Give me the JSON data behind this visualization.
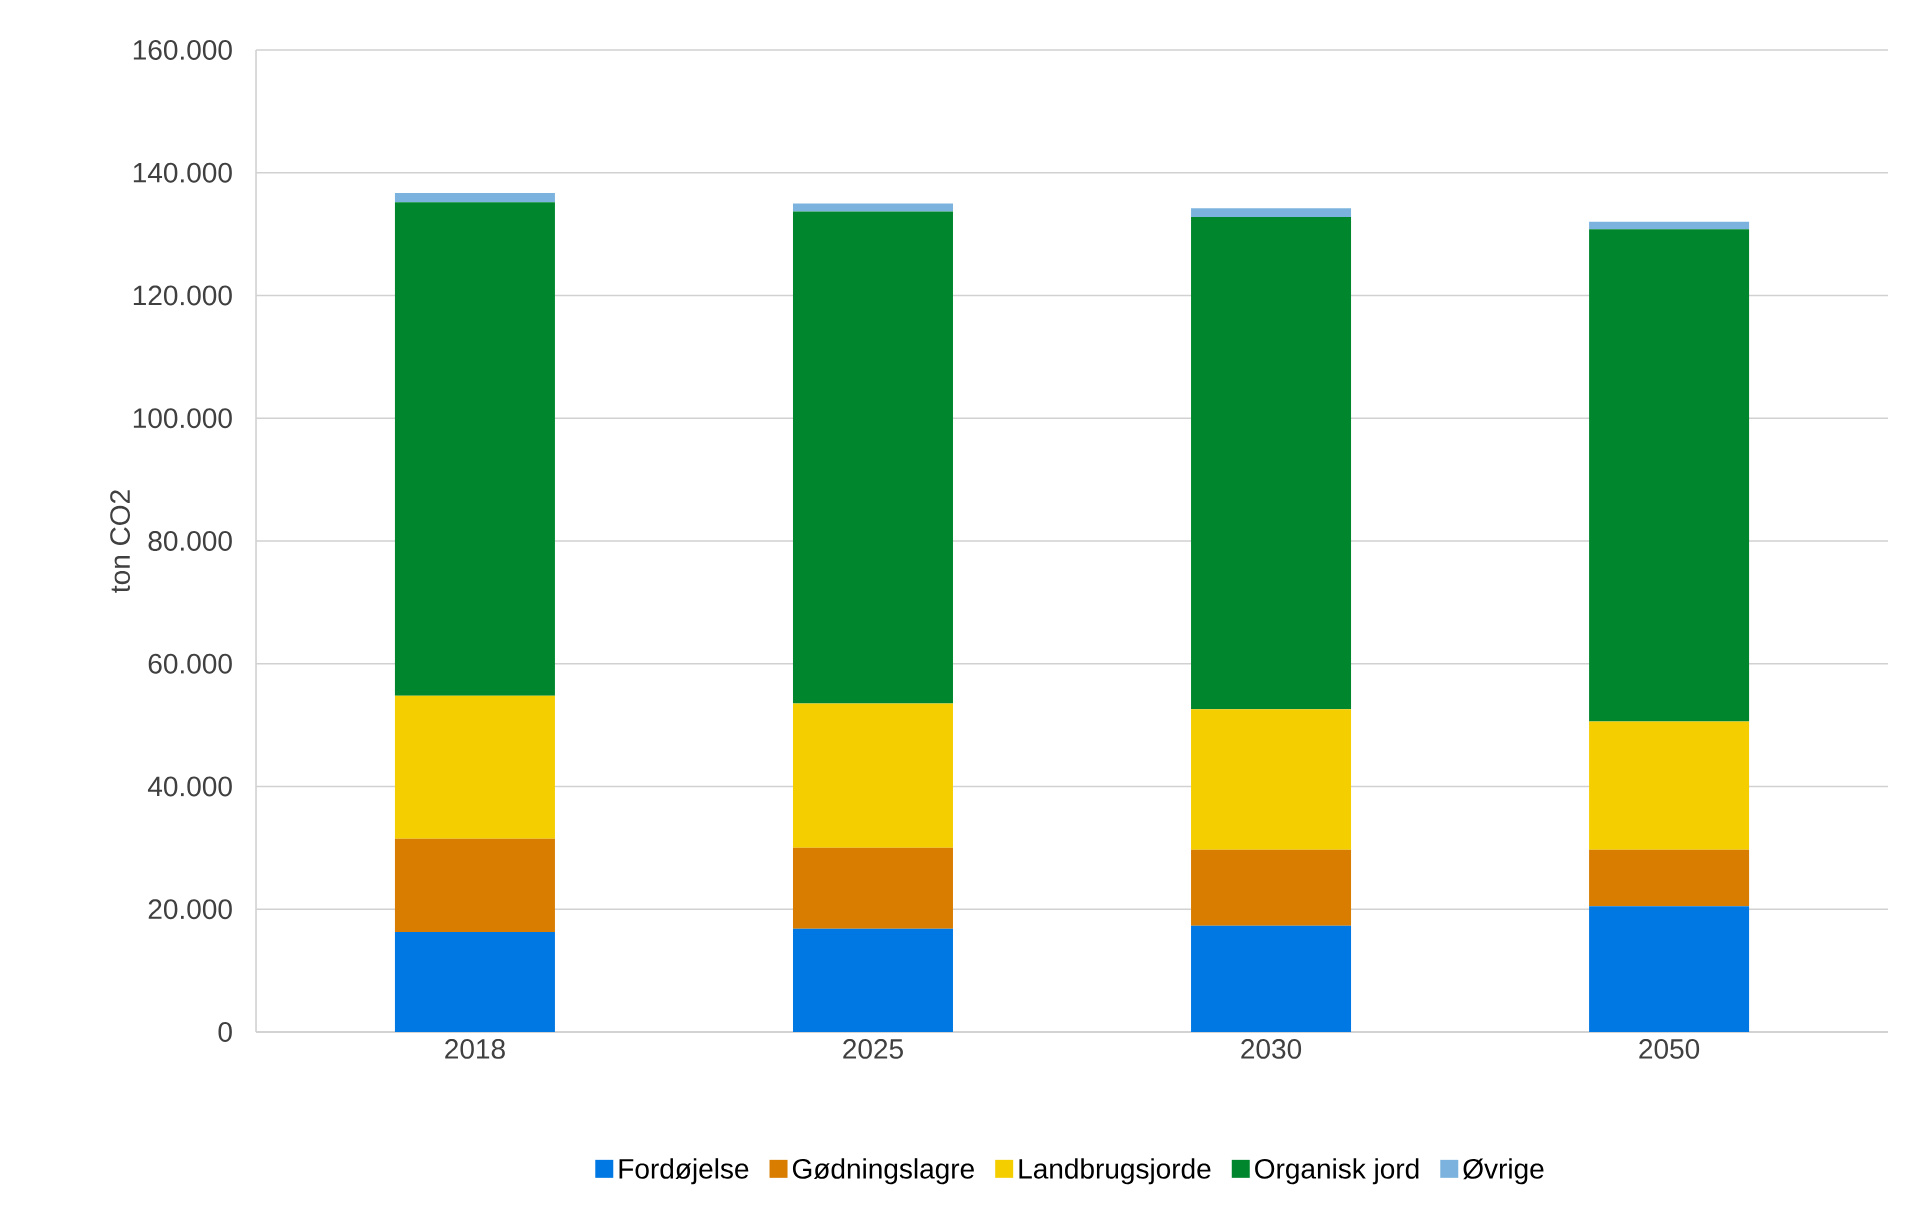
{
  "chart_data": {
    "type": "bar",
    "stacked": true,
    "ylabel": "ton CO2",
    "categories": [
      "2018",
      "2025",
      "2030",
      "2050"
    ],
    "series": [
      {
        "name": "Fordøjelse",
        "color": "#0078e3",
        "values": [
          16300,
          16800,
          17300,
          20500
        ]
      },
      {
        "name": "Gødningslagre",
        "color": "#d87d00",
        "values": [
          15200,
          13200,
          12400,
          9200
        ]
      },
      {
        "name": "Landbrugsjorde",
        "color": "#f5ce00",
        "values": [
          23300,
          23500,
          22900,
          20900
        ]
      },
      {
        "name": "Organisk jord",
        "color": "#00872e",
        "values": [
          80400,
          80200,
          80200,
          80200
        ]
      },
      {
        "name": "Øvrige",
        "color": "#7bb3de",
        "values": [
          1500,
          1300,
          1400,
          1200
        ]
      }
    ],
    "ylim": [
      0,
      160000
    ],
    "yticks": [
      0,
      {
        "value": 20000,
        "label": "20.000"
      },
      {
        "value": 40000,
        "label": "40.000"
      },
      {
        "value": 60000,
        "label": "60.000"
      },
      {
        "value": 80000,
        "label": "80.000"
      },
      {
        "value": 100000,
        "label": "100.000"
      },
      {
        "value": 120000,
        "label": "120.000"
      },
      {
        "value": 140000,
        "label": "140.000"
      },
      {
        "value": 160000,
        "label": "160.000"
      }
    ],
    "grid": "y",
    "legend": "bottom"
  }
}
